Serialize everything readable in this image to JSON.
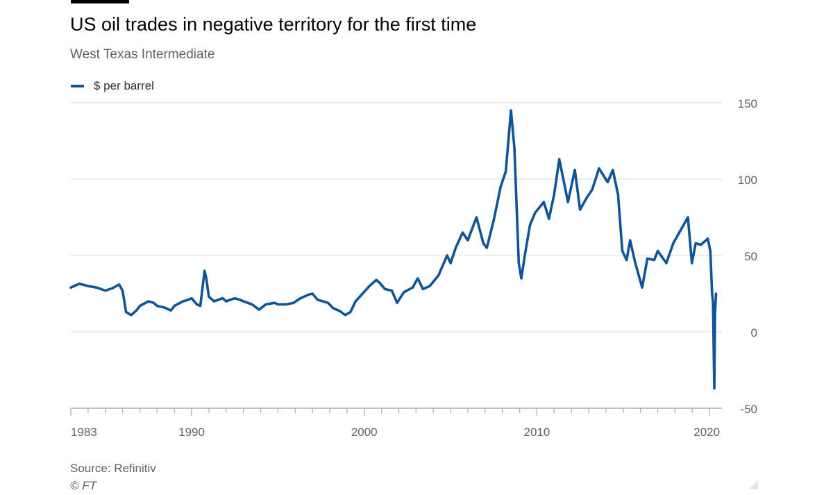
{
  "header": {
    "title": "US oil trades in negative territory for the first time",
    "subtitle": "West Texas Intermediate"
  },
  "footer": {
    "source": "Source: Refinitiv",
    "copyright": "© FT"
  },
  "colors": {
    "series": "#0f5499",
    "gridline": "#e8e6e3",
    "axis": "#b3aea9",
    "tick_label": "#66605c",
    "accent_bar": "#000000"
  },
  "chart_data": {
    "type": "line",
    "title": "US oil trades in negative territory for the first time",
    "subtitle": "West Texas Intermediate",
    "ylabel": "",
    "xlabel": "",
    "ylim": [
      -50,
      150
    ],
    "xlim": [
      1983,
      2020.6
    ],
    "yticks": [
      150,
      100,
      50,
      0,
      -50
    ],
    "xtick_labels": [
      "1983",
      "1990",
      "2000",
      "2010",
      "2020"
    ],
    "xtick_values": [
      1983,
      1990,
      2000,
      2010,
      2020
    ],
    "grid": true,
    "legend": "top-left",
    "series": [
      {
        "name": "$ per barrel",
        "points": [
          [
            1983.0,
            29
          ],
          [
            1983.5,
            31.5
          ],
          [
            1984.0,
            30
          ],
          [
            1984.5,
            29
          ],
          [
            1985.0,
            27
          ],
          [
            1985.4,
            28.5
          ],
          [
            1985.8,
            31
          ],
          [
            1986.0,
            27
          ],
          [
            1986.2,
            13
          ],
          [
            1986.5,
            11
          ],
          [
            1986.8,
            14
          ],
          [
            1987.0,
            17
          ],
          [
            1987.5,
            20
          ],
          [
            1987.8,
            19
          ],
          [
            1988.0,
            17
          ],
          [
            1988.4,
            16
          ],
          [
            1988.8,
            14
          ],
          [
            1989.0,
            17
          ],
          [
            1989.5,
            20
          ],
          [
            1989.8,
            21
          ],
          [
            1990.0,
            22
          ],
          [
            1990.3,
            18
          ],
          [
            1990.5,
            17
          ],
          [
            1990.6,
            26
          ],
          [
            1990.75,
            40
          ],
          [
            1990.85,
            35
          ],
          [
            1991.0,
            23
          ],
          [
            1991.3,
            20
          ],
          [
            1991.8,
            22
          ],
          [
            1992.0,
            20
          ],
          [
            1992.5,
            22
          ],
          [
            1992.8,
            21
          ],
          [
            1993.0,
            20
          ],
          [
            1993.5,
            18
          ],
          [
            1993.9,
            14.5
          ],
          [
            1994.3,
            18
          ],
          [
            1994.8,
            19
          ],
          [
            1995.0,
            18
          ],
          [
            1995.5,
            18
          ],
          [
            1995.9,
            19
          ],
          [
            1996.3,
            22
          ],
          [
            1996.8,
            24.5
          ],
          [
            1997.0,
            25
          ],
          [
            1997.3,
            21
          ],
          [
            1997.6,
            20
          ],
          [
            1997.9,
            19
          ],
          [
            1998.2,
            15.5
          ],
          [
            1998.6,
            13.5
          ],
          [
            1998.9,
            11
          ],
          [
            1999.2,
            13
          ],
          [
            1999.5,
            20
          ],
          [
            1999.9,
            25
          ],
          [
            2000.3,
            30
          ],
          [
            2000.7,
            34
          ],
          [
            2000.9,
            32
          ],
          [
            2001.2,
            28
          ],
          [
            2001.6,
            27
          ],
          [
            2001.9,
            19
          ],
          [
            2002.3,
            26
          ],
          [
            2002.8,
            29
          ],
          [
            2003.1,
            35
          ],
          [
            2003.4,
            28
          ],
          [
            2003.8,
            30
          ],
          [
            2004.3,
            37
          ],
          [
            2004.8,
            50
          ],
          [
            2005.0,
            45
          ],
          [
            2005.3,
            55
          ],
          [
            2005.7,
            65
          ],
          [
            2006.0,
            60
          ],
          [
            2006.5,
            75
          ],
          [
            2006.9,
            58
          ],
          [
            2007.1,
            55
          ],
          [
            2007.5,
            73
          ],
          [
            2007.9,
            95
          ],
          [
            2008.2,
            105
          ],
          [
            2008.5,
            145
          ],
          [
            2008.7,
            120
          ],
          [
            2008.95,
            45
          ],
          [
            2009.1,
            35
          ],
          [
            2009.3,
            50
          ],
          [
            2009.6,
            70
          ],
          [
            2009.9,
            78
          ],
          [
            2010.4,
            85
          ],
          [
            2010.7,
            74
          ],
          [
            2011.0,
            90
          ],
          [
            2011.3,
            113
          ],
          [
            2011.8,
            85
          ],
          [
            2012.2,
            106
          ],
          [
            2012.5,
            80
          ],
          [
            2012.9,
            88
          ],
          [
            2013.2,
            93
          ],
          [
            2013.6,
            107
          ],
          [
            2014.1,
            98
          ],
          [
            2014.4,
            106
          ],
          [
            2014.7,
            90
          ],
          [
            2014.95,
            53
          ],
          [
            2015.2,
            47
          ],
          [
            2015.4,
            60
          ],
          [
            2015.7,
            45
          ],
          [
            2015.95,
            35
          ],
          [
            2016.1,
            29
          ],
          [
            2016.4,
            48
          ],
          [
            2016.8,
            47
          ],
          [
            2017.0,
            53
          ],
          [
            2017.5,
            45
          ],
          [
            2017.9,
            58
          ],
          [
            2018.3,
            66
          ],
          [
            2018.75,
            75
          ],
          [
            2018.98,
            45
          ],
          [
            2019.2,
            58
          ],
          [
            2019.5,
            57
          ],
          [
            2019.9,
            61
          ],
          [
            2020.05,
            53
          ],
          [
            2020.15,
            25
          ],
          [
            2020.2,
            20
          ],
          [
            2020.28,
            -37
          ],
          [
            2020.32,
            12
          ],
          [
            2020.38,
            25
          ]
        ]
      }
    ]
  }
}
